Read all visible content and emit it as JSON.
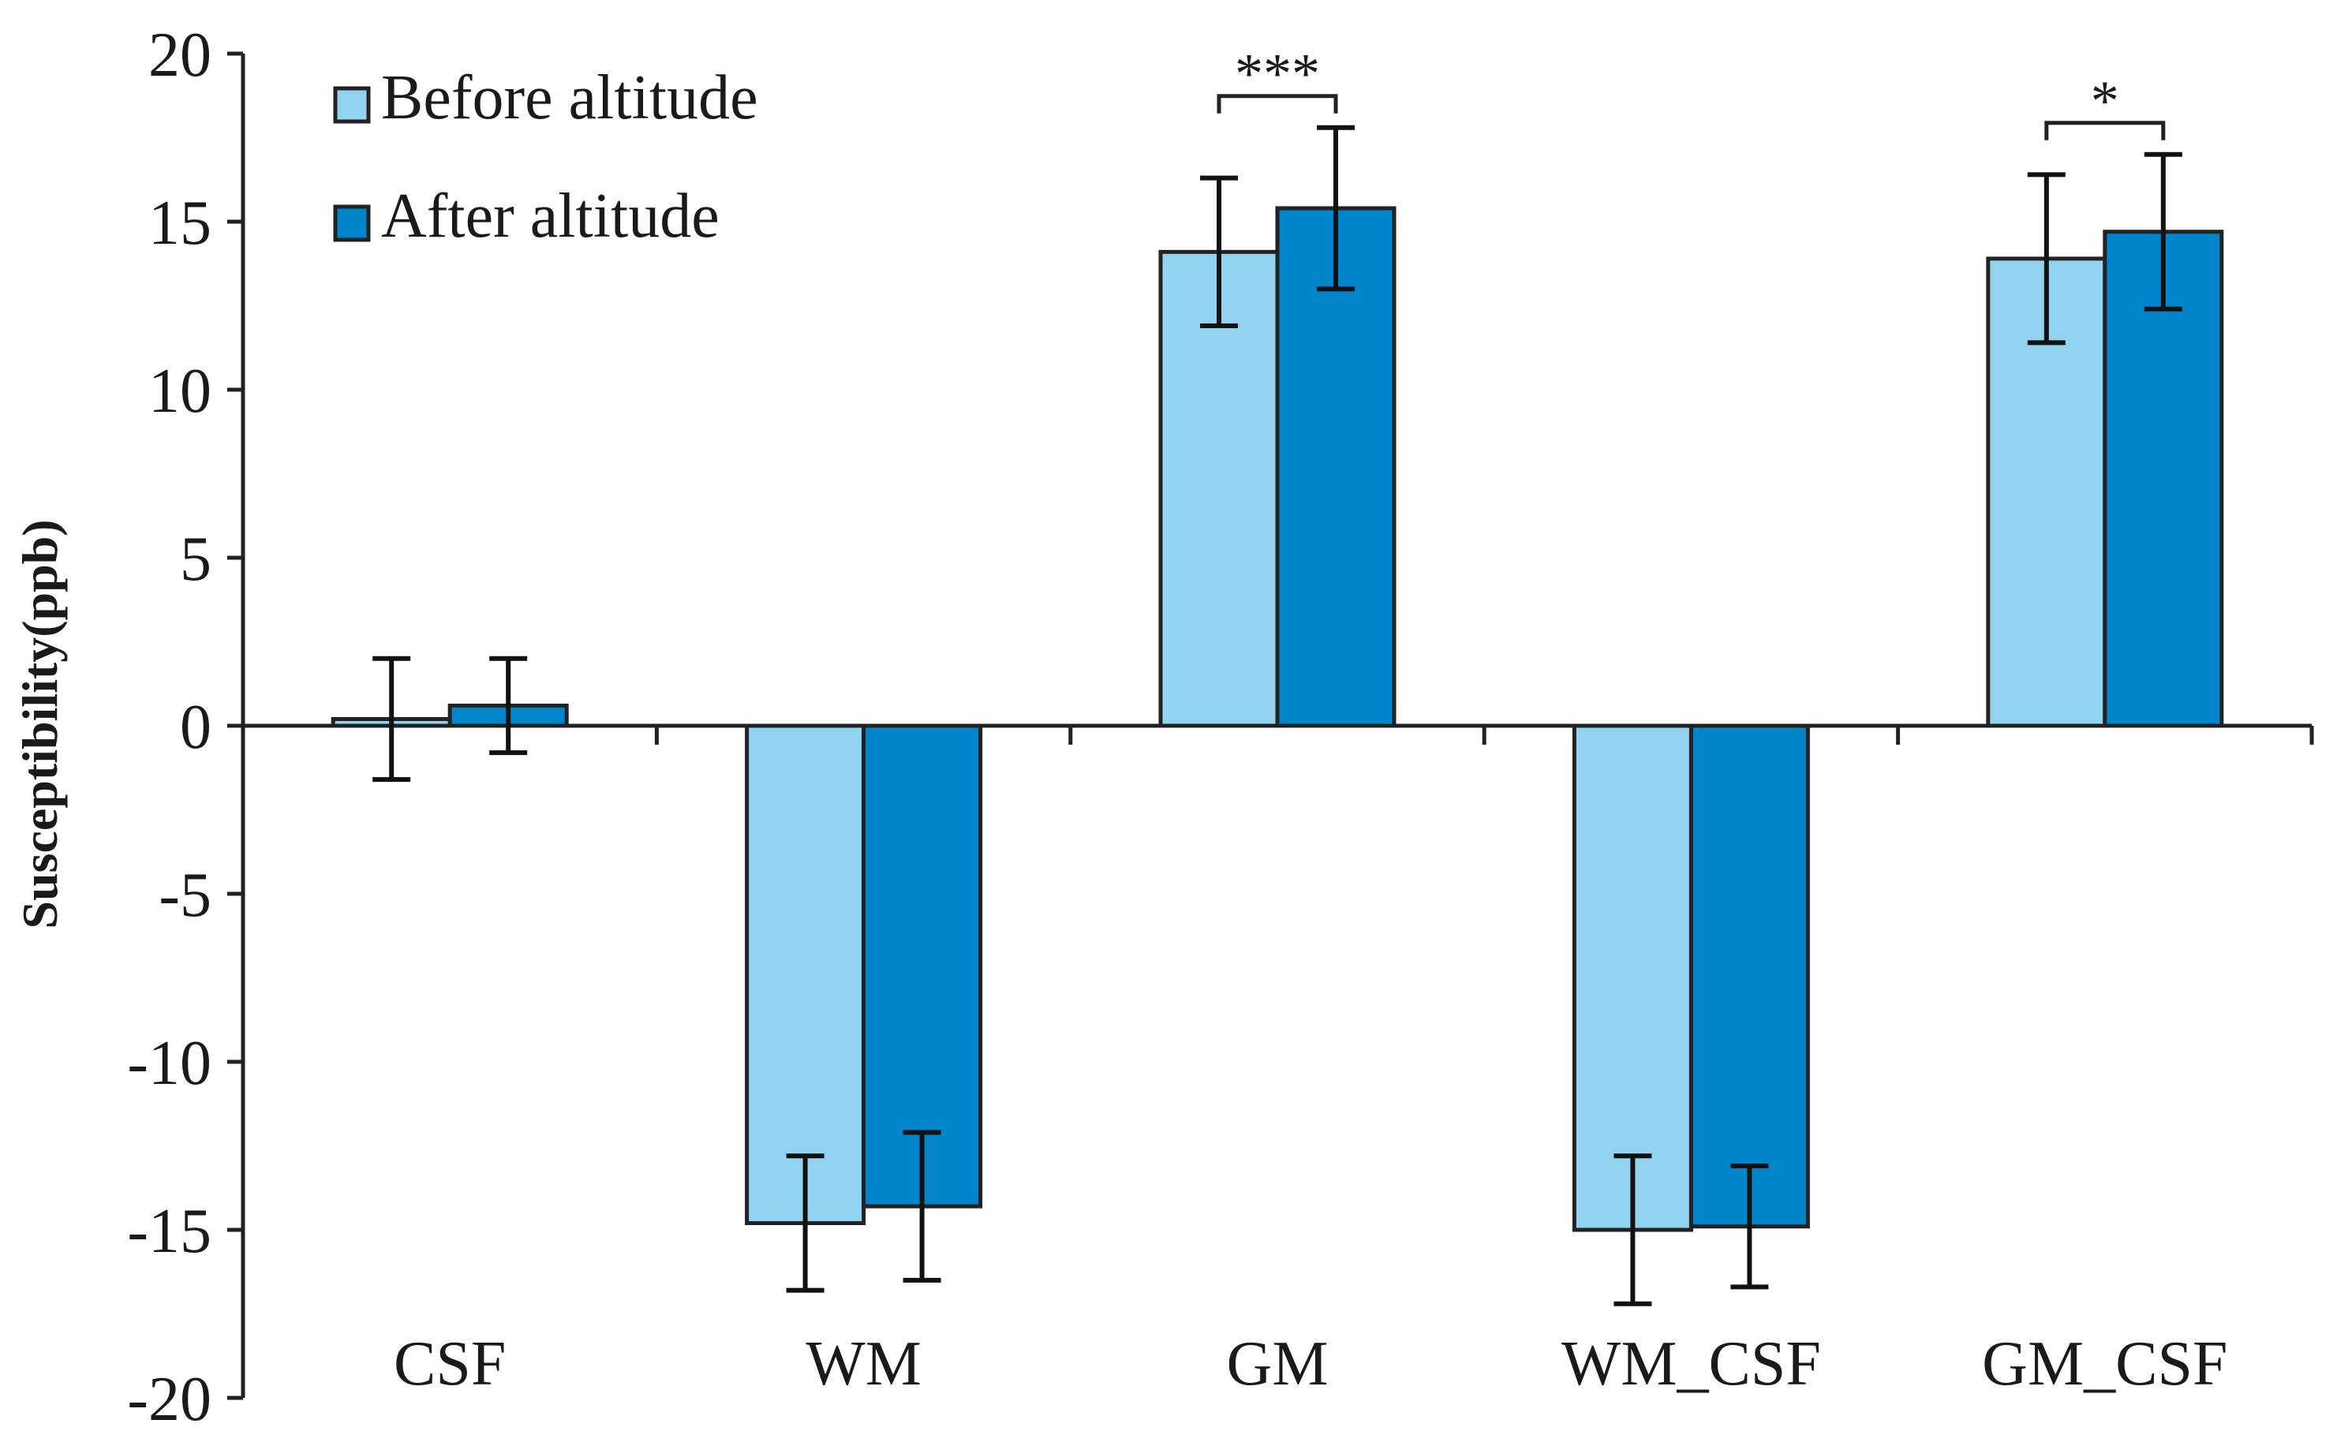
{
  "chart_data": {
    "type": "bar",
    "title": "",
    "xlabel": "",
    "ylabel": "Susceptibility(ppb)",
    "ylim": [
      -20,
      20
    ],
    "yticks": [
      20,
      15,
      10,
      5,
      0,
      -5,
      -10,
      -15,
      -20
    ],
    "categories": [
      "CSF",
      "WM",
      "GM",
      "WM_CSF",
      "GM_CSF"
    ],
    "series": [
      {
        "name": "Before altitude",
        "color": "#92d3f2",
        "values": [
          0.2,
          -14.8,
          14.1,
          -15.0,
          13.9
        ],
        "error": [
          1.8,
          2.0,
          2.2,
          2.2,
          2.5
        ]
      },
      {
        "name": "After altitude",
        "color": "#0084ca",
        "values": [
          0.6,
          -14.3,
          15.4,
          -14.9,
          14.7
        ],
        "error": [
          1.4,
          2.2,
          2.4,
          1.8,
          2.3
        ]
      }
    ],
    "grid": false,
    "legend_position": "top-left",
    "significance": [
      {
        "category": "GM",
        "label": "***"
      },
      {
        "category": "GM_CSF",
        "label": "*"
      }
    ]
  }
}
